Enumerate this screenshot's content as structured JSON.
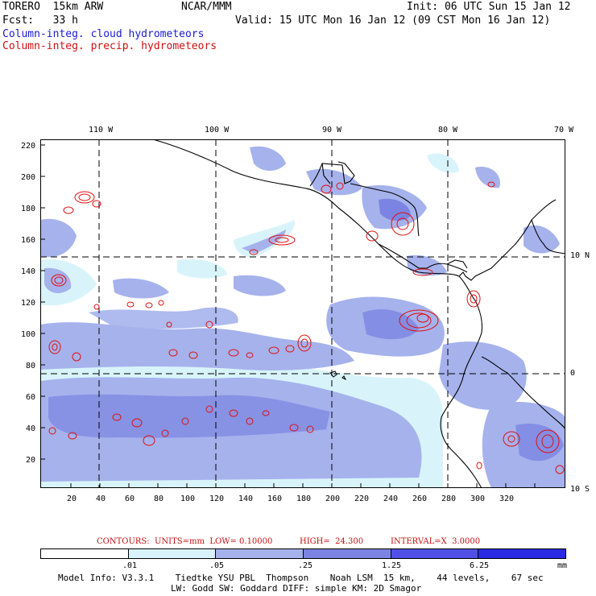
{
  "header": {
    "model": "TORERO  15km ARW",
    "org": "NCAR/MMM",
    "init": "Init: 06 UTC Sun 15 Jan 12",
    "fcst": "Fcst:   33 h",
    "valid": "Valid: 15 UTC Mon 16 Jan 12 (09 CST Mon 16 Jan 12)",
    "field1": "Column-integ. cloud hydrometeors",
    "field2": "Column-integ. precip. hydrometeors"
  },
  "map": {
    "lon_labels": [
      "110 W",
      "100 W",
      "90 W",
      "80 W",
      "70 W"
    ],
    "lat_labels": [
      "10 N",
      "0",
      "10 S"
    ],
    "y_ticks": [
      "220",
      "200",
      "180",
      "160",
      "140",
      "120",
      "100",
      "80",
      "60",
      "40",
      "20"
    ],
    "x_ticks": [
      "20",
      "40",
      "60",
      "80",
      "100",
      "120",
      "140",
      "160",
      "180",
      "200",
      "220",
      "240",
      "260",
      "280",
      "300",
      "320"
    ],
    "colors": {
      "light": "#d8f4fa",
      "pale_blue": "#a6b2ec",
      "mid_blue": "#7b84e2",
      "dark_blue": "#3a3ae0",
      "contour": "#e01010",
      "coast": "#000000"
    }
  },
  "contours_text": {
    "contours": "CONTOURS:  UNITS=mm  LOW= 0.10000",
    "high": "HIGH=  24.300",
    "interval": "INTERVAL=X  3.0000"
  },
  "colorbar": {
    "labels": [
      ".01",
      ".05",
      ".25",
      "1.25",
      "6.25"
    ],
    "units": "mm",
    "colors": [
      "#ffffff",
      "#d8f4fa",
      "#a6b2ec",
      "#7b84e2",
      "#5050e6",
      "#2a2ae4"
    ]
  },
  "footer": {
    "line1": "Model Info: V3.3.1    Tiedtke YSU PBL  Thompson    Noah LSM  15 km,    44 levels,    67 sec",
    "line2": "LW: Godd SW: Goddard DIFF: simple KM: 2D Smagor"
  }
}
